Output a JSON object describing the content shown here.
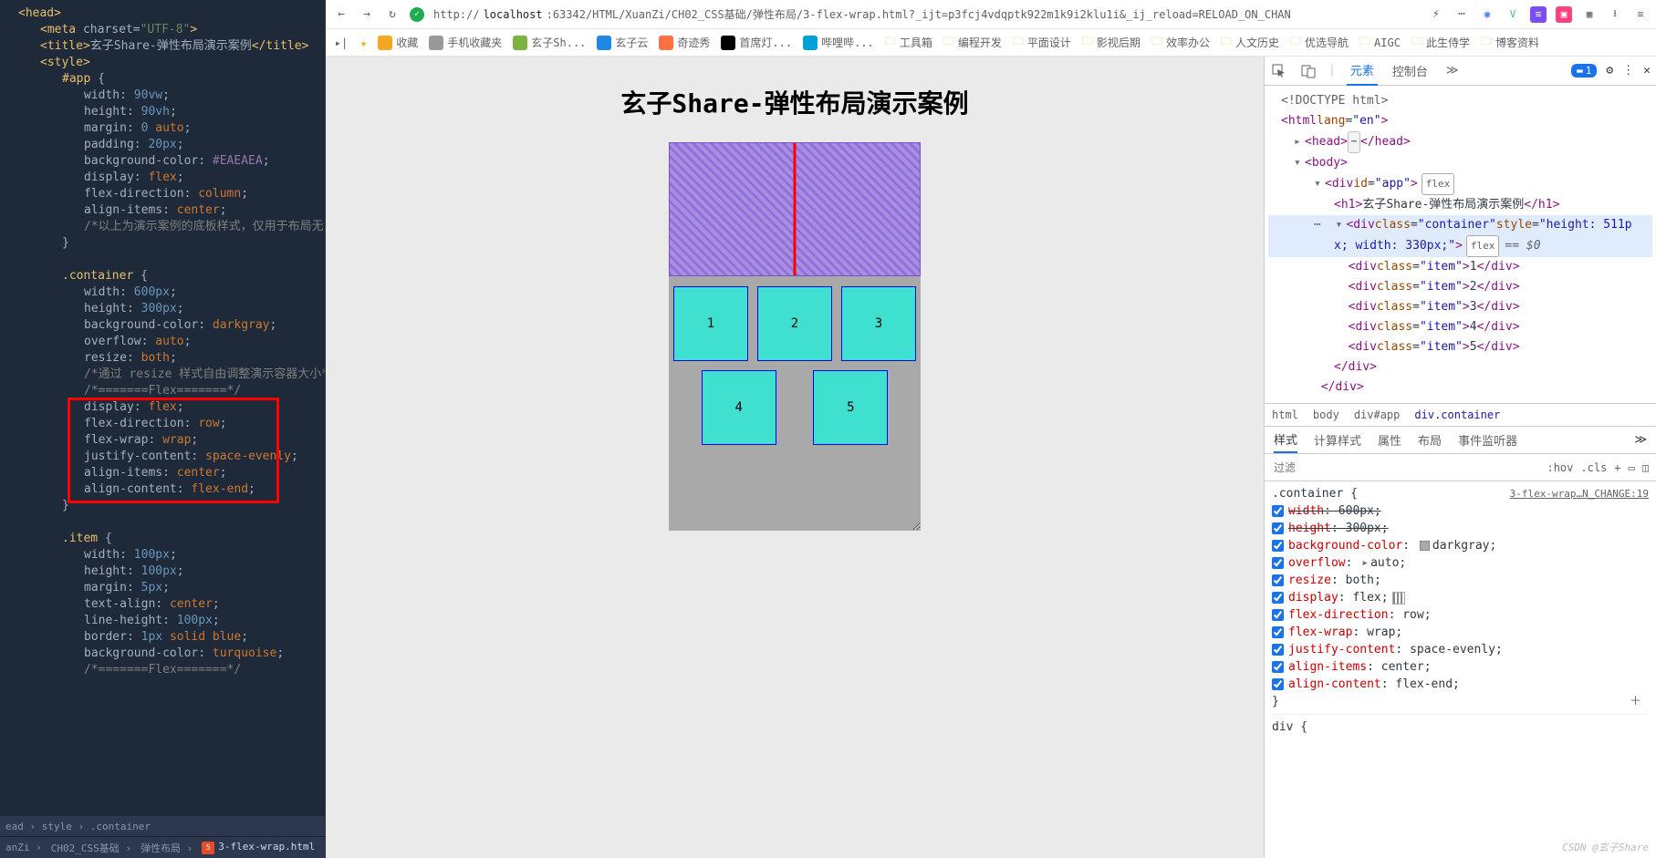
{
  "editor": {
    "code_lines": [
      {
        "i": 0,
        "html": "<span class='tag'>&lt;head&gt;</span>"
      },
      {
        "i": 1,
        "html": "<span class='tag'>&lt;meta </span><span class='attr-n'>charset=</span><span class='attr-v'>\"UTF-8\"</span><span class='tag'>&gt;</span>"
      },
      {
        "i": 1,
        "html": "<span class='tag'>&lt;title&gt;</span>玄子Share-弹性布局演示案例<span class='tag'>&lt;/title&gt;</span>"
      },
      {
        "i": 1,
        "html": "<span class='tag'>&lt;style&gt;</span>"
      },
      {
        "i": 2,
        "html": "<span class='sel'>#app </span><span class='brace'>{</span>"
      },
      {
        "i": 3,
        "html": "<span class='prop'>width</span>: <span class='num'>90vw</span>;"
      },
      {
        "i": 3,
        "html": "<span class='prop'>height</span>: <span class='num'>90vh</span>;"
      },
      {
        "i": 3,
        "html": "<span class='prop'>margin</span>: <span class='num'>0 </span><span class='kw'>auto</span>;"
      },
      {
        "i": 3,
        "html": "<span class='prop'>padding</span>: <span class='num'>20px</span>;"
      },
      {
        "i": 3,
        "html": "<span class='prop'>background-color</span>: <span class='color-v'>#EAEAEA</span>;"
      },
      {
        "i": 3,
        "html": "<span class='prop'>display</span>: <span class='kw'>flex</span>;"
      },
      {
        "i": 3,
        "html": "<span class='prop'>flex-direction</span>: <span class='kw'>column</span>;"
      },
      {
        "i": 3,
        "html": "<span class='prop'>align-items</span>: <span class='kw'>center</span>;"
      },
      {
        "i": 3,
        "html": "<span class='comment'>/*以上为演示案例的底板样式，仅用于布局无意义*/</span>"
      },
      {
        "i": 2,
        "html": "<span class='brace'>}</span>"
      },
      {
        "i": 2,
        "html": ""
      },
      {
        "i": 2,
        "html": "<span class='sel'>.container </span><span class='brace'>{</span>"
      },
      {
        "i": 3,
        "html": "<span class='prop'>width</span>: <span class='num'>600px</span>;"
      },
      {
        "i": 3,
        "html": "<span class='prop'>height</span>: <span class='num'>300px</span>;"
      },
      {
        "i": 3,
        "html": "<span class='prop'>background-color</span>: <span class='kw'>darkgray</span>;"
      },
      {
        "i": 3,
        "html": "<span class='prop'>overflow</span>: <span class='kw'>auto</span>;"
      },
      {
        "i": 3,
        "html": "<span class='prop'>resize</span>: <span class='kw'>both</span>;"
      },
      {
        "i": 3,
        "html": "<span class='comment'>/*通过 resize 样式自由调整演示容器大小*/</span>"
      },
      {
        "i": 3,
        "html": "<span class='comment'>/*=======Flex=======*/</span>"
      },
      {
        "i": 3,
        "html": "<span class='prop'>display</span>: <span class='kw'>flex</span>;"
      },
      {
        "i": 3,
        "html": "<span class='prop'>flex-direction</span>: <span class='kw'>row</span>;"
      },
      {
        "i": 3,
        "html": "<span class='prop'>flex-wrap</span>: <span class='kw'>wrap</span>;"
      },
      {
        "i": 3,
        "html": "<span class='prop'>justify-content</span>: <span class='kw'>space-evenly</span>;"
      },
      {
        "i": 3,
        "html": "<span class='prop'>align-items</span>: <span class='kw'>center</span>;"
      },
      {
        "i": 3,
        "html": "<span class='prop'>align-content</span>: <span class='kw'>flex-end</span>;"
      },
      {
        "i": 2,
        "html": "<span class='brace'>}</span>"
      },
      {
        "i": 2,
        "html": ""
      },
      {
        "i": 2,
        "html": "<span class='sel'>.item </span><span class='brace'>{</span>"
      },
      {
        "i": 3,
        "html": "<span class='prop'>width</span>: <span class='num'>100px</span>;"
      },
      {
        "i": 3,
        "html": "<span class='prop'>height</span>: <span class='num'>100px</span>;"
      },
      {
        "i": 3,
        "html": "<span class='prop'>margin</span>: <span class='num'>5px</span>;"
      },
      {
        "i": 3,
        "html": "<span class='prop'>text-align</span>: <span class='kw'>center</span>;"
      },
      {
        "i": 3,
        "html": "<span class='prop'>line-height</span>: <span class='num'>100px</span>;"
      },
      {
        "i": 3,
        "html": "<span class='prop'>border</span>: <span class='num'>1px </span><span class='kw'>solid blue</span>;"
      },
      {
        "i": 3,
        "html": "<span class='prop'>background-color</span>: <span class='kw'>turquoise</span>;"
      },
      {
        "i": 3,
        "html": "<span class='comment'>/*=======Flex=======*/</span>"
      }
    ],
    "breadcrumb": "ead › style › .container",
    "tabs": [
      "anZi",
      "CH02_CSS基础",
      "弹性布局",
      "3-flex-wrap.html"
    ]
  },
  "browser": {
    "url_proto": "http://",
    "url_host": "localhost",
    "url_path": ":63342/HTML/XuanZi/CH02_CSS基础/弹性布局/3-flex-wrap.html?_ijt=p3fcj4vdqptk922m1k9i2klu1i&_ij_reload=RELOAD_ON_CHAN",
    "bookmarks": [
      {
        "label": "收藏",
        "icon_color": "#f5a623"
      },
      {
        "label": "手机收藏夹",
        "icon_color": "#999"
      },
      {
        "label": "玄子Sh...",
        "icon_color": "#7cb342"
      },
      {
        "label": "玄子云",
        "icon_color": "#1e88e5"
      },
      {
        "label": "奇迹秀",
        "icon_color": "#ff7043"
      },
      {
        "label": "首席灯...",
        "icon_color": "#000"
      },
      {
        "label": "哔哩哔...",
        "icon_color": "#00a1d6"
      },
      {
        "label": "工具箱",
        "folder": true
      },
      {
        "label": "编程开发",
        "folder": true
      },
      {
        "label": "平面设计",
        "folder": true
      },
      {
        "label": "影视后期",
        "folder": true
      },
      {
        "label": "效率办公",
        "folder": true
      },
      {
        "label": "人文历史",
        "folder": true
      },
      {
        "label": "优选导航",
        "folder": true
      },
      {
        "label": "AIGC",
        "folder": true
      },
      {
        "label": "此生侍学",
        "folder": true
      },
      {
        "label": "博客资料",
        "folder": true
      }
    ],
    "page_title": "玄子Share-弹性布局演示案例",
    "items": [
      "1",
      "2",
      "3",
      "4",
      "5"
    ]
  },
  "devtools": {
    "tabs": {
      "elements": "元素",
      "console": "控制台",
      "badge_count": "1"
    },
    "dom": {
      "doctype": "<!DOCTYPE html>",
      "html_open": "<html lang=\"en\">",
      "head": "<head>",
      "head_close": "</head>",
      "body": "<body>",
      "app_div": "<div id=\"app\">",
      "flex_badge": "flex",
      "h1": "玄子Share-弹性布局演示案例",
      "container_line1": "<div class=\"container\" style=\"height: 511p",
      "container_line2": "x; width: 330px;\">",
      "dollar": "== $0",
      "items": [
        {
          "tag": "div",
          "cls": "item",
          "txt": "1"
        },
        {
          "tag": "div",
          "cls": "item",
          "txt": "2"
        },
        {
          "tag": "div",
          "cls": "item",
          "txt": "3"
        },
        {
          "tag": "div",
          "cls": "item",
          "txt": "4"
        },
        {
          "tag": "div",
          "cls": "item",
          "txt": "5"
        }
      ],
      "div_close": "</div>",
      "div_close2": "</div>"
    },
    "crumbs": [
      "html",
      "body",
      "div#app",
      "div.container"
    ],
    "styles_tabs": [
      "样式",
      "计算样式",
      "属性",
      "布局",
      "事件监听器"
    ],
    "filter_placeholder": "过滤",
    "filter_btns": [
      ":hov",
      ".cls",
      "+"
    ],
    "rule": {
      "selector": ".container",
      "source": "3-flex-wrap…N_CHANGE:19",
      "props": [
        {
          "p": "width",
          "v": "600px",
          "strike": true
        },
        {
          "p": "height",
          "v": "300px",
          "strike": true
        },
        {
          "p": "background-color",
          "v": "darkgray",
          "swatch": "#a9a9a9"
        },
        {
          "p": "overflow",
          "v": "auto",
          "expand": true
        },
        {
          "p": "resize",
          "v": "both"
        },
        {
          "p": "display",
          "v": "flex",
          "flex_icon": true
        },
        {
          "p": "flex-direction",
          "v": "row"
        },
        {
          "p": "flex-wrap",
          "v": "wrap"
        },
        {
          "p": "justify-content",
          "v": "space-evenly"
        },
        {
          "p": "align-items",
          "v": "center"
        },
        {
          "p": "align-content",
          "v": "flex-end"
        }
      ]
    },
    "next_rule": "div {"
  },
  "watermark": "CSDN @玄子Share"
}
